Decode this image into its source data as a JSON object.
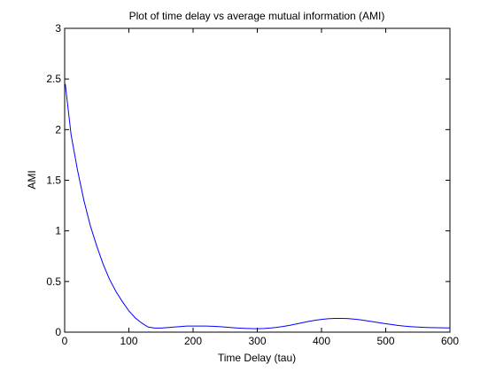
{
  "chart_data": {
    "type": "line",
    "title": "Plot of time delay vs average mutual information (AMI)",
    "xlabel": "Time Delay (tau)",
    "ylabel": "AMI",
    "xlim": [
      0,
      600
    ],
    "ylim": [
      0,
      3
    ],
    "x_ticks": [
      0,
      100,
      200,
      300,
      400,
      500,
      600
    ],
    "x_tick_labels": [
      "0",
      "100",
      "200",
      "300",
      "400",
      "500",
      "600"
    ],
    "y_ticks": [
      0,
      0.5,
      1,
      1.5,
      2,
      2.5,
      3
    ],
    "y_tick_labels": [
      "0",
      "0.5",
      "1",
      "1.5",
      "2",
      "2.5",
      "3"
    ],
    "grid": false,
    "legend": "none",
    "series": [
      {
        "color": "#0000ff",
        "x": [
          1,
          10,
          20,
          30,
          40,
          50,
          60,
          70,
          80,
          90,
          100,
          110,
          120,
          130,
          140,
          150,
          160,
          170,
          180,
          190,
          200,
          210,
          220,
          230,
          240,
          250,
          260,
          270,
          280,
          290,
          300,
          310,
          320,
          330,
          340,
          350,
          360,
          370,
          380,
          390,
          400,
          410,
          420,
          430,
          440,
          450,
          460,
          470,
          480,
          490,
          500,
          510,
          520,
          530,
          540,
          550,
          560,
          570,
          580,
          590,
          600
        ],
        "values": [
          2.45,
          1.95,
          1.6,
          1.3,
          1.05,
          0.85,
          0.67,
          0.52,
          0.4,
          0.3,
          0.21,
          0.14,
          0.09,
          0.05,
          0.04,
          0.04,
          0.045,
          0.05,
          0.055,
          0.06,
          0.06,
          0.06,
          0.06,
          0.058,
          0.055,
          0.05,
          0.045,
          0.04,
          0.037,
          0.035,
          0.034,
          0.036,
          0.04,
          0.047,
          0.056,
          0.067,
          0.08,
          0.093,
          0.106,
          0.117,
          0.126,
          0.132,
          0.135,
          0.136,
          0.134,
          0.129,
          0.122,
          0.113,
          0.103,
          0.093,
          0.083,
          0.074,
          0.066,
          0.059,
          0.054,
          0.05,
          0.047,
          0.045,
          0.044,
          0.043,
          0.042
        ]
      }
    ]
  }
}
